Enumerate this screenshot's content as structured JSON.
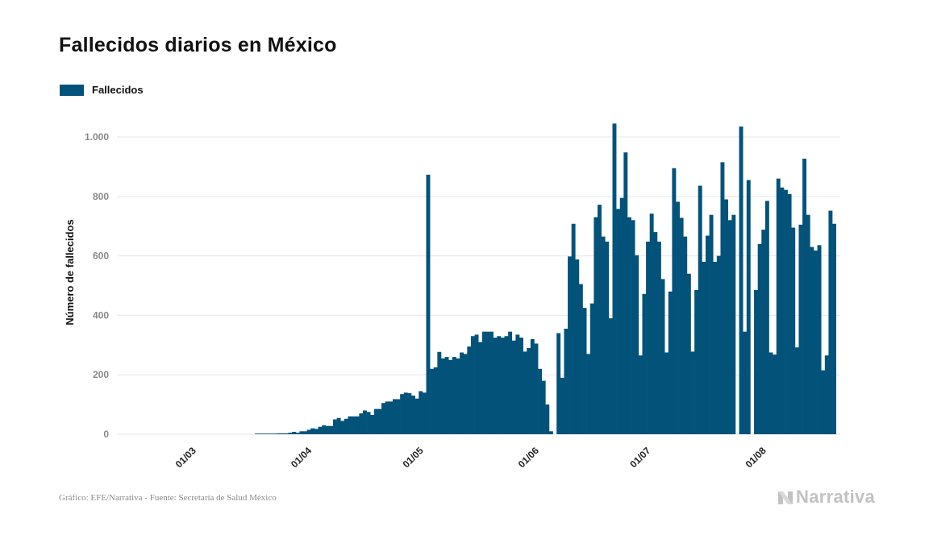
{
  "title": "Fallecidos diarios en México",
  "source": "Gráfico: EFE/Narrativa - Fuente: Secretaría de Salud México",
  "brand": "Narrativa",
  "colors": {
    "bar": "#02527a",
    "grid": "#e6e6e6",
    "tick": "#888888"
  },
  "chart_data": {
    "type": "bar",
    "title": "Fallecidos diarios en México",
    "xlabel": "",
    "ylabel": "Número de fallecidos",
    "ylim": [
      0,
      1100
    ],
    "yticks": [
      0,
      200,
      400,
      600,
      800,
      1000
    ],
    "ytick_labels": [
      "0",
      "200",
      "400",
      "600",
      "800",
      "1.000"
    ],
    "grid": true,
    "legend": "top-left",
    "x_start": "2020-02-18",
    "xticks": [
      {
        "label": "01/03",
        "index": 12
      },
      {
        "label": "01/04",
        "index": 43
      },
      {
        "label": "01/05",
        "index": 73
      },
      {
        "label": "01/06",
        "index": 104
      },
      {
        "label": "01/07",
        "index": 134
      },
      {
        "label": "01/08",
        "index": 165
      }
    ],
    "series": [
      {
        "name": "Fallecidos",
        "values": [
          0,
          0,
          0,
          0,
          0,
          0,
          0,
          0,
          0,
          0,
          0,
          0,
          0,
          0,
          0,
          0,
          0,
          0,
          0,
          0,
          0,
          0,
          0,
          0,
          0,
          0,
          0,
          0,
          0,
          1,
          1,
          1,
          1,
          1,
          2,
          3,
          3,
          3,
          5,
          8,
          5,
          10,
          10,
          15,
          20,
          18,
          25,
          30,
          28,
          28,
          50,
          55,
          45,
          52,
          60,
          60,
          60,
          70,
          80,
          75,
          65,
          85,
          85,
          105,
          110,
          110,
          118,
          118,
          135,
          140,
          138,
          130,
          120,
          145,
          140,
          873,
          220,
          225,
          277,
          255,
          260,
          250,
          260,
          255,
          275,
          270,
          295,
          330,
          335,
          310,
          345,
          345,
          345,
          325,
          330,
          325,
          330,
          345,
          315,
          335,
          325,
          278,
          290,
          320,
          305,
          220,
          180,
          100,
          10,
          0,
          340,
          190,
          355,
          598,
          708,
          588,
          505,
          425,
          270,
          440,
          730,
          772,
          665,
          648,
          390,
          1045,
          758,
          795,
          948,
          730,
          720,
          602,
          265,
          472,
          648,
          742,
          680,
          648,
          522,
          275,
          480,
          895,
          782,
          728,
          665,
          540,
          278,
          485,
          836,
          580,
          668,
          738,
          580,
          600,
          915,
          790,
          720,
          738,
          0,
          1035,
          345,
          855,
          0,
          485,
          640,
          688,
          785,
          275,
          268,
          860,
          830,
          822,
          808,
          695,
          292,
          705,
          927,
          738,
          630,
          618,
          636,
          215,
          265,
          752,
          708
        ]
      }
    ]
  }
}
